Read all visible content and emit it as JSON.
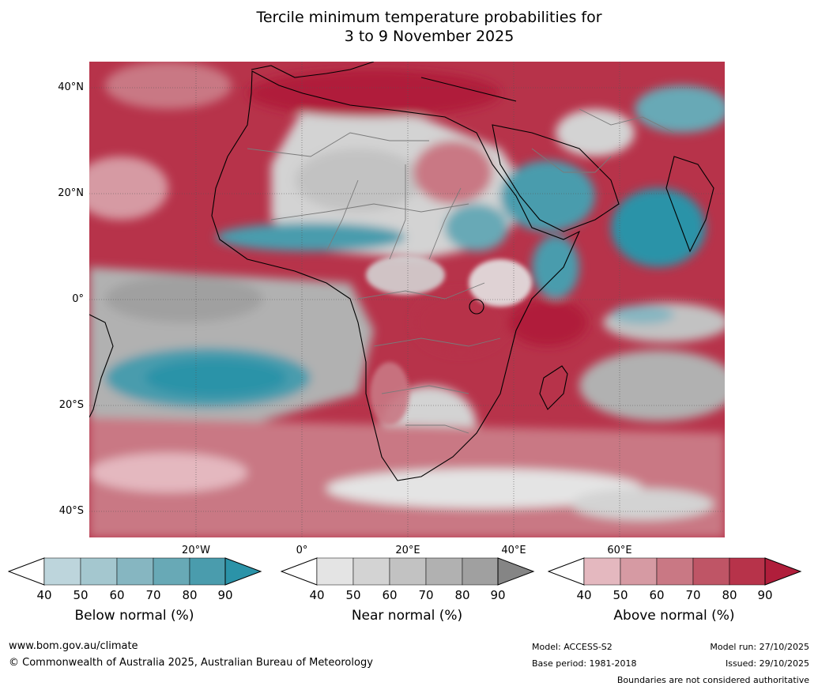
{
  "title_line1": "Tercile minimum temperature probabilities for",
  "title_line2": "3 to 9 November 2025",
  "lat_labels": [
    "40°N",
    "20°N",
    "0°",
    "20°S",
    "40°S"
  ],
  "lon_labels": [
    "20°W",
    "0°",
    "20°E",
    "40°E",
    "60°E"
  ],
  "colorbars": [
    {
      "name": "below",
      "label": "Below normal (%)",
      "ticks": [
        "40",
        "50",
        "60",
        "70",
        "80",
        "90"
      ],
      "colors": [
        "#bdd5dc",
        "#a4c7cf",
        "#86b6c1",
        "#68a9b6",
        "#4a9cad"
      ],
      "extend": "#2b93a8"
    },
    {
      "name": "near",
      "label": "Near normal (%)",
      "ticks": [
        "40",
        "50",
        "60",
        "70",
        "80",
        "90"
      ],
      "colors": [
        "#e4e4e4",
        "#d3d3d3",
        "#c2c2c2",
        "#b1b1b1",
        "#a0a0a0"
      ],
      "extend": "#858585"
    },
    {
      "name": "above",
      "label": "Above normal (%)",
      "ticks": [
        "40",
        "50",
        "60",
        "70",
        "80",
        "90"
      ],
      "colors": [
        "#e4b8bf",
        "#d69aa3",
        "#c97884",
        "#bf5566",
        "#b7334a"
      ],
      "extend": "#b01e3b"
    }
  ],
  "footer": {
    "url": "www.bom.gov.au/climate",
    "copyright": "© Commonwealth of Australia 2025, Australian Bureau of Meteorology",
    "model": "Model: ACCESS-S2",
    "base_period": "Base period: 1981-2018",
    "model_run": "Model run: 27/10/2025",
    "issued": "Issued: 29/10/2025",
    "disclaimer": "Boundaries are not considered authoritative"
  }
}
